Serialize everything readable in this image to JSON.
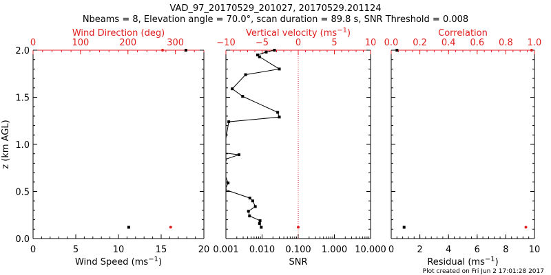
{
  "title_line1": "VAD_97_20170529_201027, 20170529.201124",
  "title_line2": "Nbeams = 8, Elevation angle = 70.0°, scan duration = 89.8 s, SNR Threshold = 0.008",
  "footer": "Plot created on Fri Jun  2 17:01:28 2017",
  "colors": {
    "axis": "#000000",
    "red": "#e02020"
  },
  "chart_data": [
    {
      "type": "scatter",
      "panel": "wind",
      "xlabel": "Wind Speed (ms",
      "xlabel_sup": "−1",
      "xlabel_end": ")",
      "ylabel": "z (km AGL)",
      "xlim": [
        0,
        20
      ],
      "ylim": [
        0,
        2.0
      ],
      "xticks": [
        "0",
        "5",
        "10",
        "15",
        "20"
      ],
      "yticks": [
        "0.0",
        "0.5",
        "1.0",
        "1.5",
        "2.0"
      ],
      "top_axis": {
        "label": "Wind Direction (deg)",
        "xlim": [
          0,
          360
        ],
        "ticks": [
          "0",
          "100",
          "200",
          "300"
        ]
      },
      "series": [
        {
          "name": "Wind Speed",
          "axis": "bottom",
          "color": "#000000",
          "points": [
            [
              11.2,
              0.12
            ],
            [
              17.9,
              2.0
            ]
          ]
        },
        {
          "name": "Wind Direction",
          "axis": "top",
          "color": "#e02020",
          "points": [
            [
              290,
              0.12
            ],
            [
              273,
              2.0
            ]
          ]
        }
      ]
    },
    {
      "type": "line",
      "panel": "vertical",
      "xlabel": "SNR",
      "xscale": "log",
      "xlim": [
        0.001,
        10.0
      ],
      "ylim": [
        0,
        2.0
      ],
      "xticks": [
        "0.001",
        "0.010",
        "0.100",
        "1.000",
        "10.000"
      ],
      "top_axis": {
        "label": "Vertical velocity (ms",
        "label_sup": "−1",
        "label_end": ")",
        "xlim": [
          -10,
          10
        ],
        "ticks": [
          "−10",
          "−5",
          "0",
          "5",
          "10"
        ],
        "zero_line": true
      },
      "series": [
        {
          "name": "SNR",
          "axis": "bottom",
          "color": "#000000",
          "points": [
            [
              0.0095,
              0.12
            ],
            [
              0.0085,
              0.16
            ],
            [
              0.0088,
              0.19
            ],
            [
              0.0045,
              0.24
            ],
            [
              0.0042,
              0.29
            ],
            [
              0.0065,
              0.34
            ],
            [
              0.0055,
              0.4
            ],
            [
              0.0046,
              0.43
            ],
            [
              0.00095,
              0.52
            ],
            [
              0.00115,
              0.59
            ],
            [
              0.0009,
              0.7
            ],
            [
              0.0009,
              0.76
            ],
            [
              0.00095,
              0.84
            ],
            [
              0.0023,
              0.89
            ],
            [
              0.00085,
              0.91
            ],
            [
              0.0012,
              1.24
            ],
            [
              0.03,
              1.29
            ],
            [
              0.027,
              1.34
            ],
            [
              0.0029,
              1.51
            ],
            [
              0.0015,
              1.59
            ],
            [
              0.0035,
              1.74
            ],
            [
              0.03,
              1.8
            ],
            [
              0.0085,
              1.93
            ],
            [
              0.0075,
              1.95
            ],
            [
              0.013,
              1.98
            ],
            [
              0.022,
              2.0
            ]
          ]
        },
        {
          "name": "Vertical velocity",
          "axis": "top",
          "color": "#e02020",
          "points": [
            [
              0,
              0.12
            ]
          ]
        }
      ]
    },
    {
      "type": "scatter",
      "panel": "residual",
      "xlabel": "Residual (ms",
      "xlabel_sup": "−1",
      "xlabel_end": ")",
      "xlim": [
        0,
        10
      ],
      "ylim": [
        0,
        2.0
      ],
      "xticks": [
        "0",
        "2",
        "4",
        "6",
        "8",
        "10"
      ],
      "top_axis": {
        "label": "Correlation",
        "xlim": [
          0,
          1.0
        ],
        "ticks": [
          "0.0",
          "0.2",
          "0.4",
          "0.6",
          "0.8",
          "1.0"
        ]
      },
      "series": [
        {
          "name": "Residual",
          "axis": "bottom",
          "color": "#000000",
          "points": [
            [
              0.9,
              0.12
            ],
            [
              0.4,
              2.0
            ]
          ]
        },
        {
          "name": "Correlation",
          "axis": "top",
          "color": "#e02020",
          "points": [
            [
              0.94,
              0.12
            ],
            [
              0.98,
              2.0
            ]
          ]
        }
      ]
    }
  ]
}
